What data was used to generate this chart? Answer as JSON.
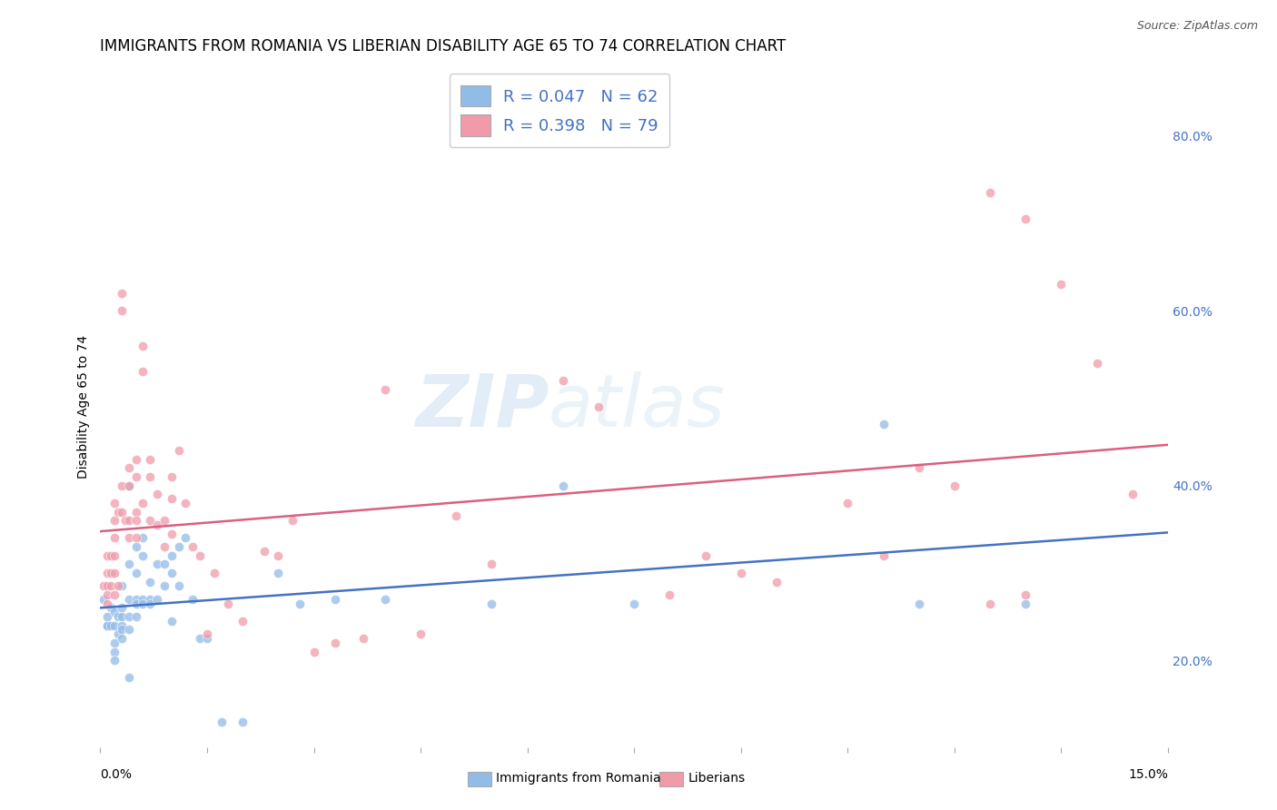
{
  "title": "IMMIGRANTS FROM ROMANIA VS LIBERIAN DISABILITY AGE 65 TO 74 CORRELATION CHART",
  "source": "Source: ZipAtlas.com",
  "ylabel": "Disability Age 65 to 74",
  "right_yticks": [
    "20.0%",
    "40.0%",
    "60.0%",
    "80.0%"
  ],
  "right_ytick_vals": [
    0.2,
    0.4,
    0.6,
    0.8
  ],
  "xlim": [
    0.0,
    0.15
  ],
  "ylim": [
    0.1,
    0.88
  ],
  "watermark_zip": "ZIP",
  "watermark_atlas": "atlas",
  "legend_romania_R": 0.047,
  "legend_romania_N": 62,
  "legend_liberian_R": 0.398,
  "legend_liberian_N": 79,
  "romania_color": "#92bce8",
  "liberian_color": "#f09aaa",
  "romania_line_color": "#4472c4",
  "liberian_line_color": "#d96080",
  "background_color": "#ffffff",
  "grid_color": "#cccccc",
  "title_fontsize": 12,
  "axis_label_fontsize": 10,
  "tick_fontsize": 10,
  "scatter_alpha": 0.75,
  "scatter_size": 55,
  "romania_x": [
    0.0005,
    0.001,
    0.001,
    0.001,
    0.0015,
    0.0015,
    0.002,
    0.002,
    0.002,
    0.002,
    0.002,
    0.0025,
    0.0025,
    0.003,
    0.003,
    0.003,
    0.003,
    0.003,
    0.003,
    0.004,
    0.004,
    0.004,
    0.004,
    0.004,
    0.004,
    0.005,
    0.005,
    0.005,
    0.005,
    0.005,
    0.006,
    0.006,
    0.006,
    0.006,
    0.007,
    0.007,
    0.007,
    0.008,
    0.008,
    0.009,
    0.009,
    0.01,
    0.01,
    0.01,
    0.011,
    0.011,
    0.012,
    0.013,
    0.014,
    0.015,
    0.017,
    0.02,
    0.025,
    0.028,
    0.033,
    0.04,
    0.055,
    0.065,
    0.075,
    0.11,
    0.115,
    0.13
  ],
  "romania_y": [
    0.27,
    0.25,
    0.24,
    0.24,
    0.26,
    0.24,
    0.255,
    0.24,
    0.22,
    0.21,
    0.2,
    0.25,
    0.23,
    0.285,
    0.26,
    0.25,
    0.24,
    0.235,
    0.225,
    0.4,
    0.31,
    0.27,
    0.25,
    0.235,
    0.18,
    0.33,
    0.3,
    0.27,
    0.265,
    0.25,
    0.34,
    0.32,
    0.27,
    0.265,
    0.29,
    0.27,
    0.265,
    0.31,
    0.27,
    0.31,
    0.285,
    0.32,
    0.3,
    0.245,
    0.33,
    0.285,
    0.34,
    0.27,
    0.225,
    0.225,
    0.13,
    0.13,
    0.3,
    0.265,
    0.27,
    0.27,
    0.265,
    0.4,
    0.265,
    0.47,
    0.265,
    0.265
  ],
  "liberian_x": [
    0.0005,
    0.001,
    0.001,
    0.001,
    0.001,
    0.001,
    0.0015,
    0.0015,
    0.0015,
    0.002,
    0.002,
    0.002,
    0.002,
    0.002,
    0.002,
    0.0025,
    0.0025,
    0.003,
    0.003,
    0.003,
    0.003,
    0.0035,
    0.004,
    0.004,
    0.004,
    0.004,
    0.005,
    0.005,
    0.005,
    0.005,
    0.005,
    0.006,
    0.006,
    0.006,
    0.007,
    0.007,
    0.007,
    0.008,
    0.008,
    0.009,
    0.009,
    0.01,
    0.01,
    0.01,
    0.011,
    0.012,
    0.013,
    0.014,
    0.015,
    0.016,
    0.018,
    0.02,
    0.023,
    0.025,
    0.027,
    0.03,
    0.033,
    0.037,
    0.04,
    0.045,
    0.05,
    0.055,
    0.065,
    0.07,
    0.08,
    0.085,
    0.09,
    0.095,
    0.105,
    0.11,
    0.115,
    0.12,
    0.125,
    0.125,
    0.13,
    0.135,
    0.14,
    0.145,
    0.13
  ],
  "liberian_y": [
    0.285,
    0.32,
    0.3,
    0.285,
    0.275,
    0.265,
    0.32,
    0.3,
    0.285,
    0.38,
    0.36,
    0.34,
    0.32,
    0.3,
    0.275,
    0.37,
    0.285,
    0.62,
    0.6,
    0.4,
    0.37,
    0.36,
    0.42,
    0.4,
    0.36,
    0.34,
    0.43,
    0.41,
    0.37,
    0.36,
    0.34,
    0.56,
    0.53,
    0.38,
    0.43,
    0.41,
    0.36,
    0.39,
    0.355,
    0.36,
    0.33,
    0.41,
    0.385,
    0.345,
    0.44,
    0.38,
    0.33,
    0.32,
    0.23,
    0.3,
    0.265,
    0.245,
    0.325,
    0.32,
    0.36,
    0.21,
    0.22,
    0.225,
    0.51,
    0.23,
    0.365,
    0.31,
    0.52,
    0.49,
    0.275,
    0.32,
    0.3,
    0.29,
    0.38,
    0.32,
    0.42,
    0.4,
    0.265,
    0.735,
    0.705,
    0.63,
    0.54,
    0.39,
    0.275
  ]
}
